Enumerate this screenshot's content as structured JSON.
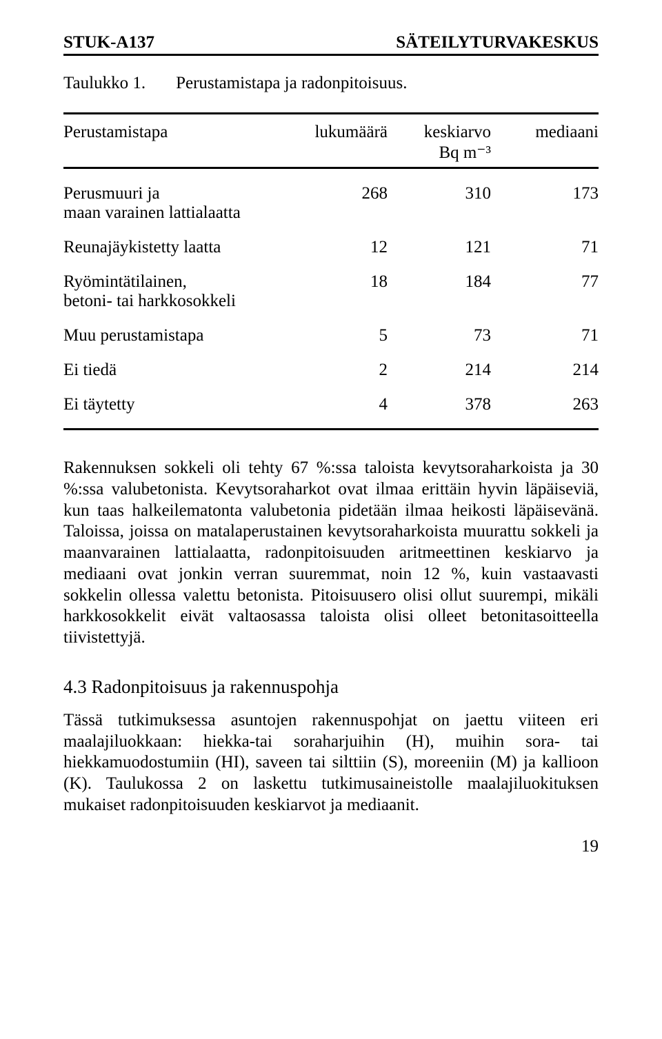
{
  "header": {
    "left": "STUK-A137",
    "right": "SÄTEILYTURVAKESKUS"
  },
  "caption": {
    "label": "Taulukko 1.",
    "text": "Perustamistapa ja radonpitoisuus."
  },
  "table": {
    "header": {
      "c1": "Perustamistapa",
      "c2": "lukumäärä",
      "c3": "keskiarvo\nBq m⁻³",
      "c4": "mediaani"
    },
    "rows": [
      {
        "c1": "Perusmuuri ja\nmaan varainen lattialaatta",
        "c2": "268",
        "c3": "310",
        "c4": "173"
      },
      {
        "c1": "Reunajäykistetty laatta",
        "c2": "12",
        "c3": "121",
        "c4": "71"
      },
      {
        "c1": "Ryömintätilainen,\nbetoni- tai harkkosokkeli",
        "c2": "18",
        "c3": "184",
        "c4": "77"
      },
      {
        "c1": "Muu perustamistapa",
        "c2": "5",
        "c3": "73",
        "c4": "71"
      },
      {
        "c1": "Ei tiedä",
        "c2": "2",
        "c3": "214",
        "c4": "214"
      },
      {
        "c1": "Ei täytetty",
        "c2": "4",
        "c3": "378",
        "c4": "263"
      }
    ]
  },
  "paragraph1": "Rakennuksen sokkeli oli tehty 67 %:ssa taloista kevytsoraharkoista ja 30 %:ssa valubetonista. Kevytsoraharkot ovat ilmaa erittäin hyvin läpäiseviä, kun taas halkeilematonta valubetonia pidetään ilmaa heikosti läpäisevänä. Taloissa, joissa on matalaperustainen kevytsoraharkoista muurattu sokkeli ja maanvarainen lattialaatta, radonpitoisuuden aritmeettinen keskiarvo ja mediaani ovat jonkin verran suuremmat, noin 12 %, kuin vastaavasti sokkelin ollessa valettu betonista. Pitoisuusero olisi ollut suurempi, mikäli harkkosokkelit eivät valtaosassa taloista olisi olleet betonitasoitteella tiivistettyjä.",
  "section43": "4.3 Radonpitoisuus ja rakennuspohja",
  "paragraph2": "Tässä tutkimuksessa asuntojen rakennuspohjat on jaettu viiteen eri maalajiluokkaan: hiekka-tai soraharjuihin (H), muihin sora- tai hiekkamuodostumiin (HI), saveen tai silttiin (S), moreeniin (M) ja kallioon (K). Taulukossa 2 on laskettu tutkimusaineistolle maalajiluokituksen mukaiset radonpitoisuuden keskiarvot ja mediaanit.",
  "pageNumber": "19"
}
